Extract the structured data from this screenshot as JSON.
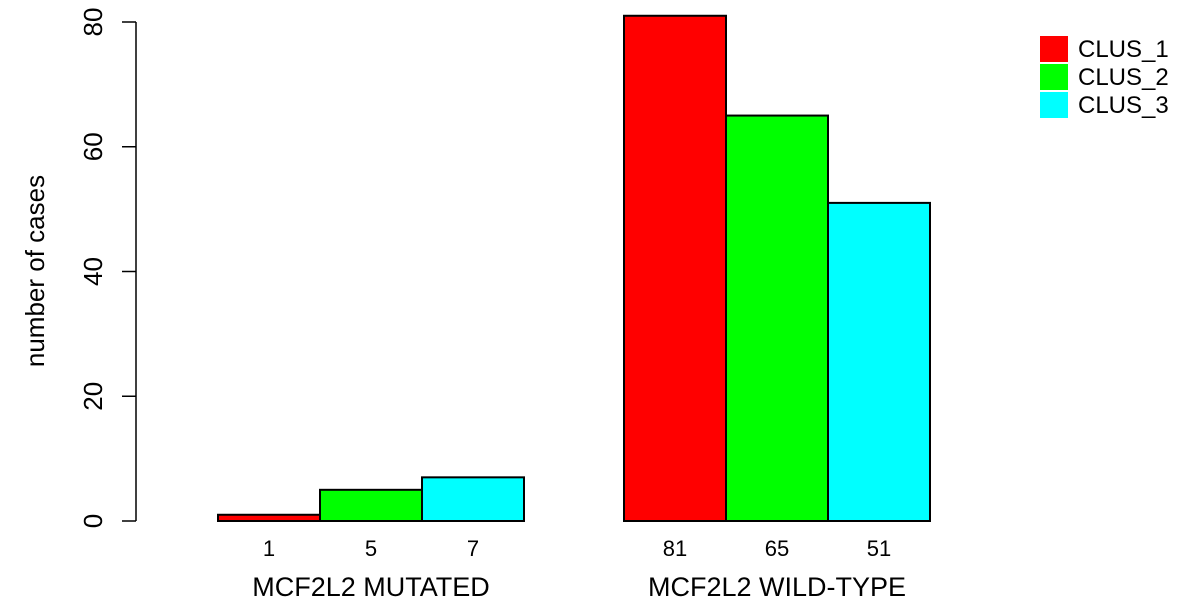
{
  "chart_data": {
    "type": "bar",
    "categories": [
      "MCF2L2 MUTATED",
      "MCF2L2 WILD-TYPE"
    ],
    "series": [
      {
        "name": "CLUS_1",
        "color": "#ff0000",
        "values": [
          1,
          81
        ]
      },
      {
        "name": "CLUS_2",
        "color": "#00ff00",
        "values": [
          5,
          65
        ]
      },
      {
        "name": "CLUS_3",
        "color": "#00ffff",
        "values": [
          7,
          51
        ]
      }
    ],
    "ylabel": "number of cases",
    "ylim": [
      0,
      80
    ],
    "yticks": [
      "0",
      "20",
      "40",
      "60",
      "80"
    ],
    "bar_labels": [
      [
        "1",
        "5",
        "7"
      ],
      [
        "81",
        "65",
        "51"
      ]
    ],
    "legend": {
      "placement": "top-right",
      "entries": [
        "CLUS_1",
        "CLUS_2",
        "CLUS_3"
      ]
    },
    "grid": false
  }
}
